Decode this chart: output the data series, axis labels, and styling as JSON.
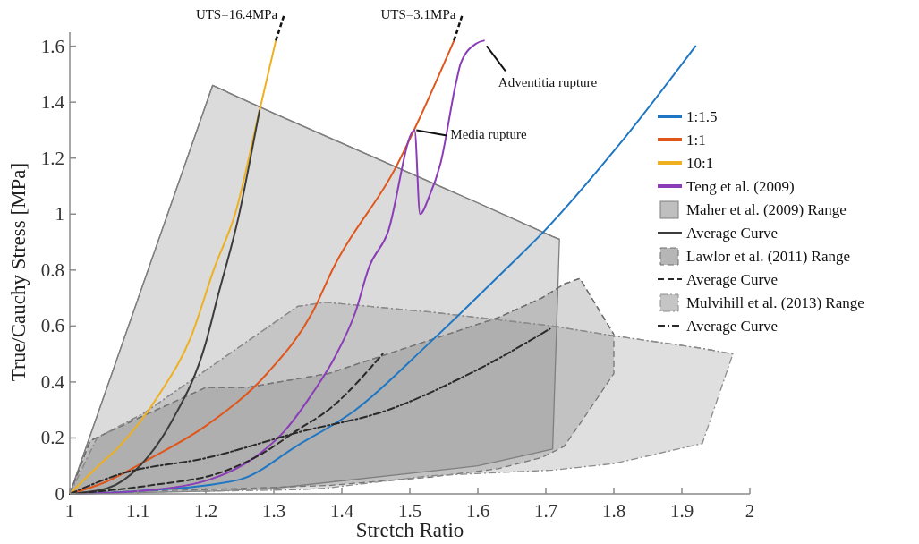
{
  "chart_data": {
    "type": "line",
    "xlabel": "Stretch Ratio",
    "ylabel": "True/Cauchy Stress [MPa]",
    "xlim": [
      1,
      2
    ],
    "xticks": [
      1,
      1.1,
      1.2,
      1.3,
      1.4,
      1.5,
      1.6,
      1.7,
      1.8,
      1.9,
      2
    ],
    "ylim": [
      0,
      1.65
    ],
    "yticks": [
      0,
      0.2,
      0.4,
      0.6,
      0.8,
      1,
      1.2,
      1.4,
      1.6
    ],
    "grid": false,
    "legend": "right",
    "marker": "none",
    "series": [
      {
        "name": "1:1.5",
        "color": "#1f77c4",
        "x": [
          1,
          1.1,
          1.248,
          1.336,
          1.42,
          1.529,
          1.644,
          1.694,
          1.805,
          1.92
        ],
        "values": [
          0,
          0.01,
          0.05,
          0.175,
          0.3,
          0.54,
          0.81,
          0.93,
          1.24,
          1.6
        ]
      },
      {
        "name": "1:1",
        "color": "#e0561b",
        "x": [
          1,
          1.05,
          1.117,
          1.204,
          1.29,
          1.357,
          1.388,
          1.48,
          1.51,
          1.565
        ],
        "values": [
          0,
          0.04,
          0.125,
          0.25,
          0.43,
          0.65,
          0.81,
          1.17,
          1.32,
          1.62
        ]
      },
      {
        "name": "10:1",
        "color": "#eeb01e",
        "x": [
          1,
          1.042,
          1.073,
          1.13,
          1.178,
          1.213,
          1.243,
          1.279,
          1.303
        ],
        "values": [
          0,
          0.1,
          0.17,
          0.35,
          0.56,
          0.81,
          1.0,
          1.37,
          1.62
        ]
      },
      {
        "name": "Teng et al. (2009)",
        "color": "#8b3db8",
        "x": [
          1,
          1.1,
          1.204,
          1.28,
          1.314,
          1.357,
          1.39,
          1.42,
          1.44,
          1.467,
          1.507,
          1.515,
          1.528,
          1.545,
          1.568,
          1.575,
          1.598,
          1.609
        ],
        "values": [
          0,
          0.01,
          0.05,
          0.145,
          0.22,
          0.36,
          0.49,
          0.65,
          0.81,
          0.93,
          1.3,
          1.0,
          1.06,
          1.18,
          1.47,
          1.54,
          1.61,
          1.62
        ]
      },
      {
        "name": "Maher et al. (2009) Range",
        "color": "#7f7f7f",
        "line_style": "solid",
        "x": [
          1,
          1.21,
          1.3,
          1.6,
          1.71,
          1.72
        ],
        "values": [
          0,
          1.46,
          1.36,
          1.04,
          0.92,
          0.91
        ],
        "upper": [
          0,
          1.46,
          1.36,
          1.04,
          0.92,
          0.91
        ],
        "lower": [
          0,
          0.01,
          0.02,
          0.1,
          0.16,
          0.91
        ]
      },
      {
        "name": "Average Curve",
        "color": "#3c3c3c",
        "line_style": "solid",
        "x": [
          1,
          1.055,
          1.103,
          1.15,
          1.2,
          1.217,
          1.25,
          1.268,
          1.279
        ],
        "values": [
          0,
          0.02,
          0.1,
          0.26,
          0.54,
          0.7,
          1.01,
          1.23,
          1.37
        ]
      },
      {
        "name": "Lawlor et al. (2011) Range",
        "color": "#6e6e6e",
        "line_style": "dashed",
        "x": [
          1,
          1.03,
          1.1,
          1.2,
          1.26,
          1.38,
          1.53,
          1.63,
          1.694,
          1.727,
          1.75,
          1.8
        ],
        "values": [
          0,
          0.19,
          0.27,
          0.38,
          0.38,
          0.43,
          0.55,
          0.63,
          0.7,
          0.75,
          0.77,
          0.57
        ],
        "upper": [
          0,
          0.19,
          0.27,
          0.38,
          0.38,
          0.43,
          0.55,
          0.63,
          0.7,
          0.75,
          0.77,
          0.57
        ],
        "lower": [
          0,
          0.005,
          0.01,
          0.015,
          0.02,
          0.03,
          0.06,
          0.09,
          0.13,
          0.17,
          0.25,
          0.43
        ]
      },
      {
        "name": "Average Curve",
        "color": "#2a2a2a",
        "line_style": "dashed",
        "x": [
          1,
          1.117,
          1.226,
          1.28,
          1.336,
          1.38,
          1.46
        ],
        "values": [
          0,
          0.03,
          0.08,
          0.14,
          0.23,
          0.3,
          0.5
        ]
      },
      {
        "name": "Mulvihill et al. (2013) Range",
        "color": "#8c8c8c",
        "line_style": "dashdot",
        "x": [
          1,
          1.04,
          1.11,
          1.335,
          1.375,
          1.53,
          1.71,
          1.8,
          1.93,
          1.975
        ],
        "values": [
          0,
          0.2,
          0.29,
          0.67,
          0.685,
          0.65,
          0.6,
          0.565,
          0.52,
          0.5
        ],
        "upper": [
          0,
          0.2,
          0.29,
          0.67,
          0.685,
          0.65,
          0.6,
          0.565,
          0.52,
          0.5
        ],
        "lower": [
          0,
          0.003,
          0.006,
          0.015,
          0.02,
          0.065,
          0.085,
          0.108,
          0.18,
          0.5
        ]
      },
      {
        "name": "Average Curve",
        "color": "#2a2a2a",
        "line_style": "dashdot",
        "x": [
          1,
          1.073,
          1.204,
          1.336,
          1.468,
          1.58,
          1.62,
          1.706
        ],
        "values": [
          0,
          0.07,
          0.13,
          0.22,
          0.3,
          0.42,
          0.47,
          0.59
        ]
      }
    ],
    "annotations": [
      {
        "text": "UTS=16.4MPa",
        "x": 1.303,
        "y": 1.62
      },
      {
        "text": "UTS=3.1MPa",
        "x": 1.565,
        "y": 1.62
      },
      {
        "text": "Media rupture",
        "x": 1.507,
        "y": 1.3
      },
      {
        "text": "Adventitia rupture",
        "x": 1.609,
        "y": 1.62
      }
    ]
  }
}
